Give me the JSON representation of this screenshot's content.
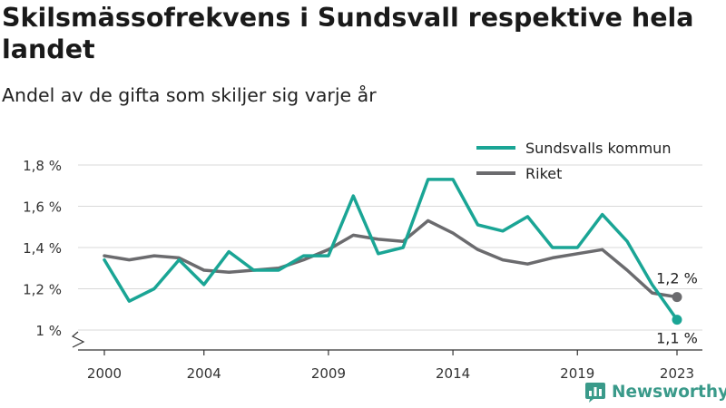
{
  "header": {
    "title": "Skilsmässofrekvens i Sundsvall respektive hela landet",
    "subtitle": "Andel av de gifta som skiljer sig varje år"
  },
  "logo": {
    "text": "Newsworthy",
    "icon": "bar-chart-logo-icon"
  },
  "colors": {
    "sundsvall": "#1aa595",
    "riket": "#6b6b6e",
    "grid": "#d9d9d9",
    "axis": "#333333"
  },
  "chart_data": {
    "type": "line",
    "x": [
      2000,
      2001,
      2002,
      2003,
      2004,
      2005,
      2006,
      2007,
      2008,
      2009,
      2010,
      2011,
      2012,
      2013,
      2014,
      2015,
      2016,
      2017,
      2018,
      2019,
      2020,
      2021,
      2022,
      2023
    ],
    "x_ticks": [
      2000,
      2004,
      2009,
      2014,
      2019,
      2023
    ],
    "x_tick_labels": [
      "2000",
      "2004",
      "2009",
      "2014",
      "2019",
      "2023"
    ],
    "ylim": [
      1.0,
      1.8
    ],
    "y_ticks": [
      1.0,
      1.2,
      1.4,
      1.6,
      1.8
    ],
    "y_tick_labels": [
      "1 %",
      "1,2 %",
      "1,4 %",
      "1,6 %",
      "1,8 %"
    ],
    "y_axis_break": true,
    "grid": true,
    "legend_position": "top-right",
    "series": [
      {
        "name": "Sundsvalls kommun",
        "color": "#1aa595",
        "values": [
          1.34,
          1.14,
          1.2,
          1.34,
          1.22,
          1.38,
          1.29,
          1.29,
          1.36,
          1.36,
          1.65,
          1.37,
          1.4,
          1.73,
          1.73,
          1.51,
          1.48,
          1.55,
          1.4,
          1.4,
          1.56,
          1.43,
          1.22,
          1.05
        ],
        "end_label": "1,1 %"
      },
      {
        "name": "Riket",
        "color": "#6b6b6e",
        "values": [
          1.36,
          1.34,
          1.36,
          1.35,
          1.29,
          1.28,
          1.29,
          1.3,
          1.34,
          1.39,
          1.46,
          1.44,
          1.43,
          1.53,
          1.47,
          1.39,
          1.34,
          1.32,
          1.35,
          1.37,
          1.39,
          1.29,
          1.18,
          1.16
        ],
        "end_label": "1,2 %"
      }
    ]
  }
}
